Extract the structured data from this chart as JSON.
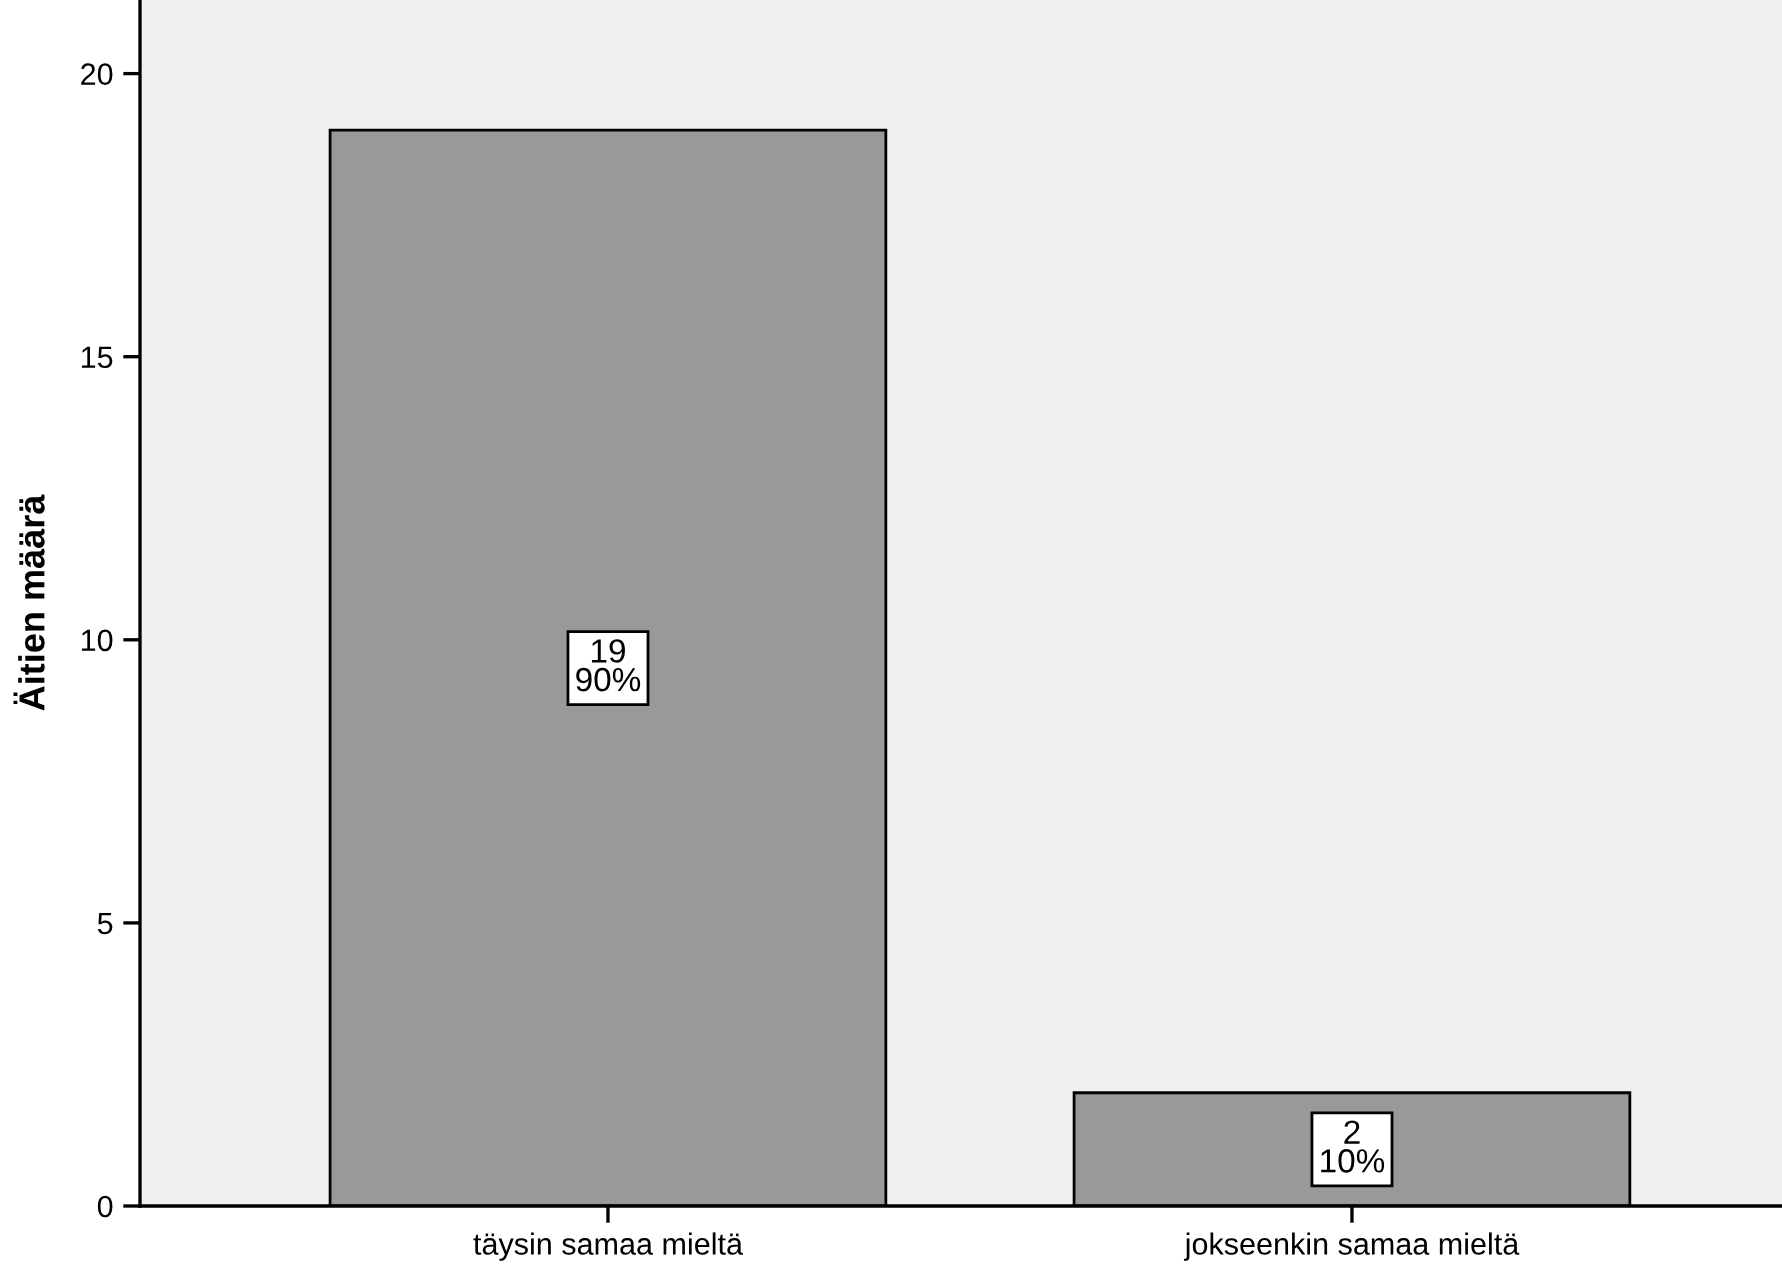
{
  "chart_data": {
    "type": "bar",
    "ylabel": "Äitien määrä",
    "categories": [
      "täysin samaa mieltä",
      "jokseenkin samaa mieltä"
    ],
    "values": [
      19,
      2
    ],
    "color": "#999999",
    "value_labels": [
      "19\n90%",
      "2\n10%"
    ],
    "ylim": [
      0,
      21.3
    ],
    "yticks": [
      0,
      5,
      10,
      15,
      20
    ],
    "grid": false
  }
}
